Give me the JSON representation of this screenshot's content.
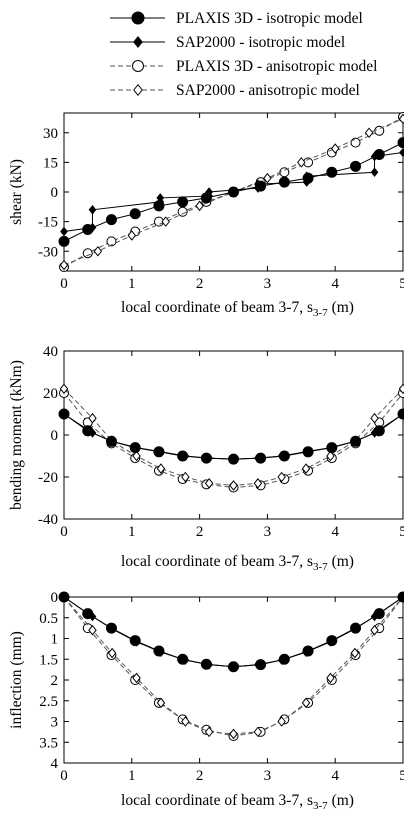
{
  "legend": {
    "entries": [
      {
        "label": "PLAXIS 3D - isotropic model",
        "marker": "filled-circle",
        "line": "solid"
      },
      {
        "label": "SAP2000 - isotropic model",
        "marker": "filled-diamond",
        "line": "solid"
      },
      {
        "label": "PLAXIS 3D - anisotropic model",
        "marker": "open-circle",
        "line": "dashed"
      },
      {
        "label": "SAP2000 - anisotropic model",
        "marker": "open-diamond",
        "line": "dashed"
      }
    ],
    "placement": "top"
  },
  "chart_data": [
    {
      "type": "line",
      "ylabel": "shear (kN)",
      "xlabel": "local coordinate of beam 3-7, s",
      "xlabel_sub": "3-7",
      "xlabel_unit": " (m)",
      "xlim": [
        0,
        5
      ],
      "ylim": [
        -40,
        40
      ],
      "x_ticks": [
        0,
        1,
        2,
        3,
        4,
        5
      ],
      "y_ticks": [
        30,
        15,
        0,
        -15,
        -30
      ],
      "grid": false,
      "series": [
        {
          "name": "PLAXIS 3D - isotropic model",
          "x": [
            0,
            0.35,
            0.7,
            1.05,
            1.4,
            1.75,
            2.1,
            2.5,
            2.9,
            3.25,
            3.6,
            3.95,
            4.3,
            4.65,
            5
          ],
          "y": [
            -25,
            -19,
            -14,
            -11,
            -7,
            -5,
            -3,
            0,
            3,
            5,
            7,
            10,
            13,
            19,
            25
          ]
        },
        {
          "name": "SAP2000 - isotropic model",
          "x": [
            0,
            0.42,
            0.42,
            1.42,
            1.42,
            2.14,
            2.14,
            2.86,
            2.86,
            3.58,
            3.58,
            4.58,
            4.58,
            5
          ],
          "y": [
            -20,
            -18,
            -9,
            -5,
            -3,
            -2,
            0,
            2,
            4,
            5,
            8,
            10,
            18,
            20
          ]
        },
        {
          "name": "PLAXIS 3D - anisotropic model",
          "x": [
            0,
            0.35,
            0.7,
            1.05,
            1.4,
            1.75,
            2.1,
            2.5,
            2.9,
            3.25,
            3.6,
            3.95,
            4.3,
            4.65,
            5
          ],
          "y": [
            -38,
            -31,
            -25,
            -20,
            -15,
            -10,
            -5,
            0,
            5,
            10,
            15,
            20,
            25,
            31,
            38
          ]
        },
        {
          "name": "SAP2000 - anisotropic model",
          "x": [
            0,
            0.5,
            1.0,
            1.5,
            2.0,
            2.5,
            3.0,
            3.5,
            4.0,
            4.5,
            5
          ],
          "y": [
            -37,
            -30,
            -22,
            -15,
            -7,
            0,
            7,
            15,
            22,
            30,
            37
          ]
        }
      ]
    },
    {
      "type": "line",
      "ylabel": "bending moment (kNm)",
      "xlabel": "local coordinate of beam 3-7, s",
      "xlabel_sub": "3-7",
      "xlabel_unit": " (m)",
      "xlim": [
        0,
        5
      ],
      "ylim": [
        -40,
        40
      ],
      "x_ticks": [
        0,
        1,
        2,
        3,
        4,
        5
      ],
      "y_ticks": [
        40,
        20,
        0,
        -20,
        -40
      ],
      "grid": false,
      "series": [
        {
          "name": "PLAXIS 3D - isotropic model",
          "x": [
            0,
            0.35,
            0.7,
            1.05,
            1.4,
            1.75,
            2.1,
            2.5,
            2.9,
            3.25,
            3.6,
            3.95,
            4.3,
            4.65,
            5
          ],
          "y": [
            10,
            2,
            -3,
            -6,
            -8,
            -10,
            -11,
            -11.5,
            -11,
            -10,
            -8,
            -6,
            -3,
            2,
            10
          ]
        },
        {
          "name": "SAP2000 - isotropic model",
          "x": [
            0,
            0.42,
            0.71,
            1.07,
            1.43,
            1.79,
            2.14,
            2.5,
            2.86,
            3.21,
            3.57,
            3.93,
            4.29,
            4.58,
            5
          ],
          "y": [
            10,
            1,
            -3,
            -6,
            -8,
            -10,
            -11,
            -11.5,
            -11,
            -10,
            -8,
            -6,
            -3,
            1,
            10
          ]
        },
        {
          "name": "PLAXIS 3D - anisotropic model",
          "x": [
            0,
            0.35,
            0.7,
            1.05,
            1.4,
            1.75,
            2.1,
            2.5,
            2.9,
            3.25,
            3.6,
            3.95,
            4.3,
            4.65,
            5
          ],
          "y": [
            20,
            6,
            -4,
            -11,
            -17,
            -21,
            -23.5,
            -25,
            -24,
            -21,
            -17,
            -11,
            -4,
            6,
            20
          ]
        },
        {
          "name": "SAP2000 - anisotropic model",
          "x": [
            0,
            0.42,
            0.71,
            1.07,
            1.43,
            1.79,
            2.14,
            2.5,
            2.86,
            3.21,
            3.57,
            3.93,
            4.29,
            4.58,
            5
          ],
          "y": [
            22,
            8,
            -3,
            -10,
            -16,
            -20,
            -23,
            -24,
            -23,
            -20,
            -16,
            -10,
            -3,
            8,
            22
          ]
        }
      ]
    },
    {
      "type": "line",
      "ylabel": "inflection (mm)",
      "xlabel": "local coordinate of beam 3-7, s",
      "xlabel_sub": "3-7",
      "xlabel_unit": " (m)",
      "xlim": [
        0,
        5
      ],
      "ylim": [
        0,
        4
      ],
      "y_inverted": true,
      "x_ticks": [
        0,
        1,
        2,
        3,
        4,
        5
      ],
      "y_ticks": [
        0,
        0.5,
        1,
        1.5,
        2,
        2.5,
        3,
        3.5,
        4
      ],
      "y_tick_labels": [
        "0",
        "0.5",
        "1",
        "1.5",
        "2",
        "2.5",
        "3",
        "3.5",
        "4"
      ],
      "grid": false,
      "series": [
        {
          "name": "PLAXIS 3D - isotropic model",
          "x": [
            0,
            0.35,
            0.7,
            1.05,
            1.4,
            1.75,
            2.1,
            2.5,
            2.9,
            3.25,
            3.6,
            3.95,
            4.3,
            4.65,
            5
          ],
          "y": [
            0,
            0.4,
            0.75,
            1.05,
            1.3,
            1.5,
            1.62,
            1.68,
            1.63,
            1.5,
            1.3,
            1.05,
            0.75,
            0.4,
            0
          ]
        },
        {
          "name": "SAP2000 - isotropic model",
          "x": [
            0,
            0.42,
            0.71,
            1.07,
            1.43,
            1.79,
            2.14,
            2.5,
            2.86,
            3.21,
            3.57,
            3.93,
            4.29,
            4.58,
            5
          ],
          "y": [
            0,
            0.47,
            0.77,
            1.08,
            1.33,
            1.52,
            1.63,
            1.68,
            1.63,
            1.52,
            1.33,
            1.08,
            0.77,
            0.47,
            0
          ]
        },
        {
          "name": "PLAXIS 3D - anisotropic model",
          "x": [
            0,
            0.35,
            0.7,
            1.05,
            1.4,
            1.75,
            2.1,
            2.5,
            2.9,
            3.25,
            3.6,
            3.95,
            4.3,
            4.65,
            5
          ],
          "y": [
            0,
            0.75,
            1.4,
            2.0,
            2.55,
            2.95,
            3.2,
            3.35,
            3.25,
            2.95,
            2.55,
            2.0,
            1.4,
            0.75,
            0
          ]
        },
        {
          "name": "SAP2000 - anisotropic model",
          "x": [
            0,
            0.42,
            0.71,
            1.07,
            1.43,
            1.79,
            2.14,
            2.5,
            2.86,
            3.21,
            3.57,
            3.93,
            4.29,
            4.58,
            5
          ],
          "y": [
            0,
            0.8,
            1.35,
            1.95,
            2.55,
            3.0,
            3.25,
            3.3,
            3.25,
            3.0,
            2.55,
            1.95,
            1.35,
            0.8,
            0
          ]
        }
      ]
    }
  ]
}
